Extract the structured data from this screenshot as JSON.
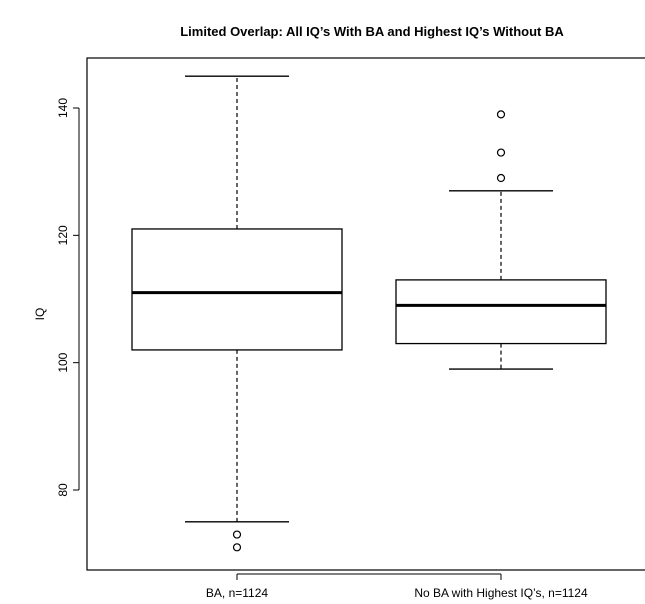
{
  "chart_data": {
    "type": "box",
    "title": "Limited Overlap: All IQ’s With BA and Highest IQ’s Without BA",
    "xlabel": "",
    "ylabel": "IQ",
    "ylim": [
      68,
      148
    ],
    "yticks": [
      "80",
      "100",
      "120",
      "140"
    ],
    "categories": [
      "BA, n=1124",
      "No BA with Highest IQ’s, n=1124"
    ],
    "boxes": [
      {
        "category": "BA, n=1124",
        "whisker_low": 75,
        "q1": 102,
        "median": 111,
        "q3": 121,
        "whisker_high": 145,
        "outliers": [
          71,
          73
        ]
      },
      {
        "category": "No BA with Highest IQ’s, n=1124",
        "whisker_low": 99,
        "q1": 103,
        "median": 109,
        "q3": 113,
        "whisker_high": 127,
        "outliers": [
          129,
          133,
          139
        ]
      }
    ],
    "grid": false,
    "legend": "none"
  },
  "colors": {
    "stroke": "#000000",
    "background": "#ffffff"
  }
}
